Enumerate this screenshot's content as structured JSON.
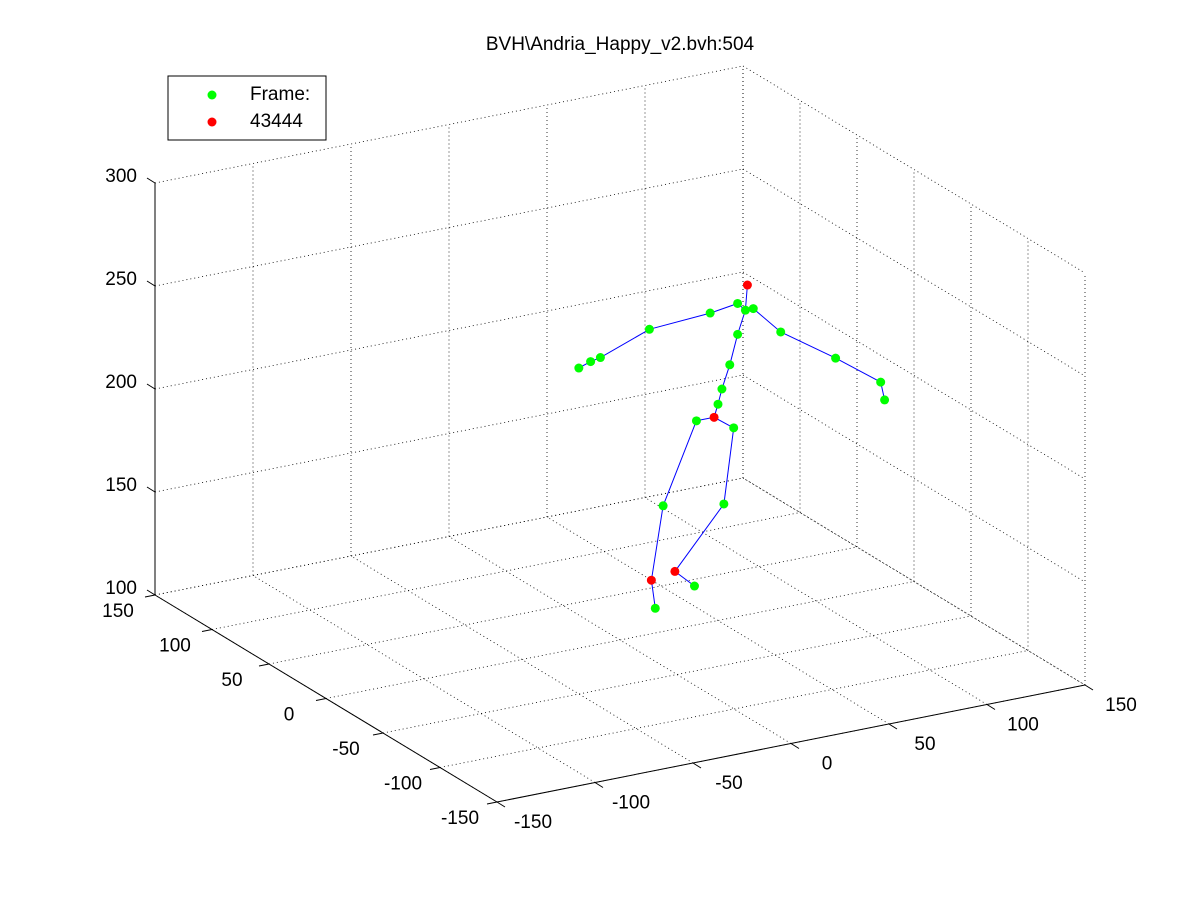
{
  "chart_data": {
    "type": "scatter3d",
    "title": "BVH\\Andria_Happy_v2.bvh:504",
    "xlim": [
      -150,
      150
    ],
    "ylim": [
      -150,
      150
    ],
    "zlim": [
      100,
      300
    ],
    "xticks": [
      -150,
      -100,
      -50,
      0,
      50,
      100,
      150
    ],
    "yticks": [
      -150,
      -100,
      -50,
      0,
      50,
      100,
      150
    ],
    "zticks": [
      100,
      150,
      200,
      250,
      300
    ],
    "grid": true,
    "legend": "northwest",
    "series": [
      {
        "name": "Frame:",
        "color": "#00ff00",
        "x": [
          50,
          52,
          56,
          60,
          64,
          60,
          68,
          46,
          15,
          -10,
          -15,
          -21,
          82,
          110,
          133,
          135,
          39,
          22,
          18,
          58,
          53,
          38
        ],
        "y": [
          0,
          0,
          0,
          0,
          0,
          0,
          0,
          0,
          0,
          0,
          0,
          0,
          0,
          0,
          0,
          0,
          0,
          0,
          0,
          0,
          0,
          0
        ],
        "z": [
          205,
          212,
          223,
          237,
          248,
          252,
          248,
          250,
          248,
          239,
          238,
          236,
          234,
          216,
          200,
          191,
          199,
          161,
          112,
          192,
          156,
          119
        ]
      },
      {
        "name": "43444",
        "color": "#ff0000",
        "x": [
          65,
          48,
          16,
          28
        ],
        "y": [
          0,
          0,
          0,
          0
        ],
        "z": [
          260,
          199,
          126,
          128
        ]
      },
      {
        "color": "#0000ff",
        "x": [
          48,
          50,
          52,
          56,
          60,
          64,
          65,
          null,
          64,
          60,
          46,
          15,
          -10,
          -15,
          -21,
          null,
          64,
          68,
          82,
          110,
          133,
          135,
          null,
          39,
          48,
          58,
          null,
          39,
          22,
          16,
          18,
          null,
          58,
          53,
          28,
          38
        ],
        "y": [
          0,
          0,
          0,
          0,
          0,
          0,
          0,
          null,
          0,
          0,
          0,
          0,
          0,
          0,
          0,
          null,
          0,
          0,
          0,
          0,
          0,
          0,
          null,
          0,
          0,
          0,
          null,
          0,
          0,
          0,
          0,
          null,
          0,
          0,
          0,
          0
        ],
        "z": [
          199,
          205,
          212,
          223,
          237,
          248,
          260,
          null,
          248,
          252,
          250,
          248,
          239,
          238,
          236,
          null,
          248,
          248,
          234,
          216,
          200,
          191,
          null,
          199,
          199,
          192,
          null,
          199,
          161,
          126,
          112,
          null,
          192,
          156,
          128,
          119
        ]
      }
    ]
  }
}
